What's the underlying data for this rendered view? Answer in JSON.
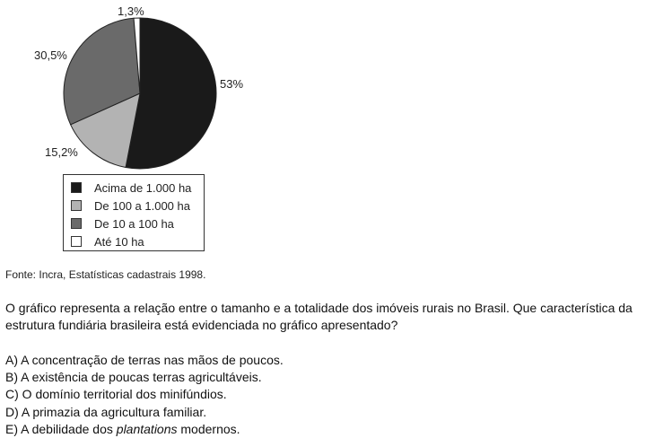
{
  "chart_data": {
    "type": "pie",
    "title": "",
    "slices": [
      {
        "label": "Acima de 1.000 ha",
        "value": 53,
        "display": "53%",
        "color": "#1a1a1a"
      },
      {
        "label": "De 100 a 1.000 ha",
        "value": 15.2,
        "display": "15,2%",
        "color": "#b3b3b3"
      },
      {
        "label": "De 10 a 100 ha",
        "value": 30.5,
        "display": "30,5%",
        "color": "#6a6a6a"
      },
      {
        "label": "Até 10 ha",
        "value": 1.3,
        "display": "1,3%",
        "color": "#ffffff"
      }
    ],
    "legend_placement": "bottom"
  },
  "source": "Fonte: Incra, Estatísticas cadastrais 1998.",
  "question": "O gráfico representa a relação entre o tamanho e a totalidade dos imóveis rurais no Brasil. Que característica da estrutura fundiária brasileira está evidenciada no gráfico apresentado?",
  "options": [
    {
      "letter": "A)",
      "text": "A concentração de terras nas mãos de poucos."
    },
    {
      "letter": "B)",
      "text": "A existência de poucas terras agricultáveis."
    },
    {
      "letter": "C)",
      "text": "O domínio territorial dos minifúndios."
    },
    {
      "letter": "D)",
      "text": "A primazia da agricultura familiar."
    },
    {
      "letter": "E)",
      "text": "A debilidade dos",
      "emphasis": "plantations",
      "suffix": "modernos."
    }
  ]
}
